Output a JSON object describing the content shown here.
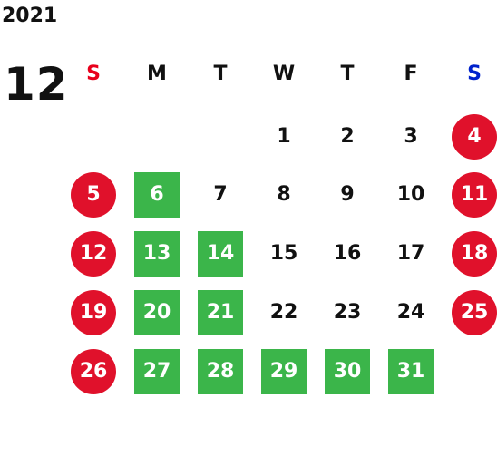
{
  "calendar": {
    "year": "2021",
    "month": "12",
    "weekdays": [
      "S",
      "M",
      "T",
      "W",
      "T",
      "F",
      "S"
    ],
    "weeks": [
      [
        "",
        "",
        "",
        "1",
        "2",
        "3",
        "4"
      ],
      [
        "5",
        "6",
        "7",
        "8",
        "9",
        "10",
        "11"
      ],
      [
        "12",
        "13",
        "14",
        "15",
        "16",
        "17",
        "18"
      ],
      [
        "19",
        "20",
        "21",
        "22",
        "23",
        "24",
        "25"
      ],
      [
        "26",
        "27",
        "28",
        "29",
        "30",
        "31",
        ""
      ]
    ],
    "highlighted_days": [
      "6",
      "13",
      "14",
      "20",
      "21",
      "27",
      "28",
      "29",
      "30",
      "31"
    ]
  },
  "colors": {
    "sunday_label": "#e8001c",
    "saturday_label": "#0022cc",
    "weekend_circle": "#e0112b",
    "highlight_square": "#3bb54a",
    "text": "#111111"
  }
}
